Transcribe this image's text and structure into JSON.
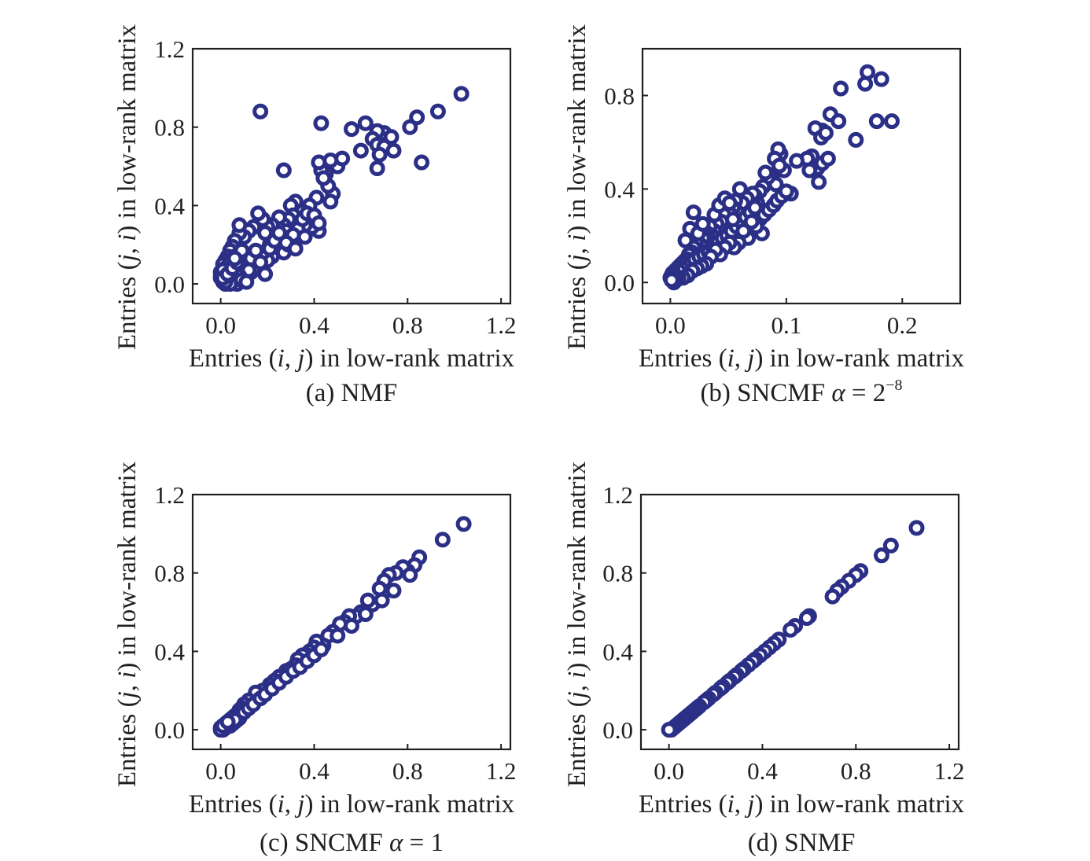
{
  "figure": {
    "marker_color": "#2b2f86",
    "axis_color": "#231f20"
  },
  "chart_data": [
    {
      "id": "a",
      "type": "scatter",
      "caption": "(a) NMF",
      "xlabel": {
        "prefix": "Entries (",
        "v1": "i",
        "sep": ", ",
        "v2": "j",
        "suffix": ") in low-rank matrix"
      },
      "ylabel": {
        "prefix": "Entries (",
        "v1": "j",
        "sep": ", ",
        "v2": "i",
        "suffix": ") in low-rank matrix"
      },
      "xlim": [
        -0.12,
        1.24
      ],
      "ylim": [
        -0.1,
        1.2
      ],
      "xticks": [
        {
          "v": 0,
          "label": "0.0"
        },
        {
          "v": 0.4,
          "label": "0.4"
        },
        {
          "v": 0.8,
          "label": "0.8"
        },
        {
          "v": 1.2,
          "label": "1.2"
        }
      ],
      "yticks": [
        {
          "v": 0,
          "label": "0.0"
        },
        {
          "v": 0.4,
          "label": "0.4"
        },
        {
          "v": 0.8,
          "label": "0.8"
        },
        {
          "v": 1.2,
          "label": "1.2"
        }
      ],
      "x": [
        1.03,
        0.93,
        0.81,
        0.84,
        0.7,
        0.67,
        0.65,
        0.62,
        0.6,
        0.67,
        0.7,
        0.68,
        0.73,
        0.74,
        0.67,
        0.86,
        0.56,
        0.43,
        0.17,
        0.27,
        0.5,
        0.52,
        0.47,
        0.45,
        0.43,
        0.42,
        0.48,
        0.46,
        0.44,
        0.47,
        0.41,
        0.38,
        0.35,
        0.32,
        0.3,
        0.42,
        0.39,
        0.36,
        0.33,
        0.31,
        0.29,
        0.27,
        0.25,
        0.22,
        0.2,
        0.18,
        0.16,
        0.14,
        0.12,
        0.1,
        0.08,
        0.06,
        0.05,
        0.04,
        0.03,
        0.02,
        0.01,
        0.0,
        0.0,
        0.01,
        0.02,
        0.03,
        0.05,
        0.07,
        0.09,
        0.11,
        0.13,
        0.15,
        0.17,
        0.19,
        0.21,
        0.23,
        0.26,
        0.28,
        0.3,
        0.33,
        0.35,
        0.37,
        0.4,
        0.42,
        0.24,
        0.22,
        0.2,
        0.18,
        0.16,
        0.14,
        0.12,
        0.1,
        0.08,
        0.06,
        0.04,
        0.02,
        0.0,
        0.01,
        0.03,
        0.05,
        0.07,
        0.09,
        0.11,
        0.13,
        0.15,
        0.17,
        0.19,
        0.21,
        0.23,
        0.25,
        0.27,
        0.29,
        0.31,
        0.19,
        0.12,
        0.08,
        0.06,
        0.04,
        0.02,
        0.01,
        0.03,
        0.05,
        0.07,
        0.09,
        0.11,
        0.28,
        0.32,
        0.36,
        0.09,
        0.08,
        0.06
      ],
      "y": [
        0.97,
        0.88,
        0.8,
        0.85,
        0.77,
        0.78,
        0.74,
        0.82,
        0.68,
        0.71,
        0.7,
        0.66,
        0.75,
        0.68,
        0.59,
        0.62,
        0.79,
        0.82,
        0.88,
        0.58,
        0.6,
        0.64,
        0.63,
        0.56,
        0.58,
        0.62,
        0.46,
        0.5,
        0.54,
        0.42,
        0.44,
        0.4,
        0.37,
        0.42,
        0.4,
        0.27,
        0.29,
        0.3,
        0.32,
        0.35,
        0.33,
        0.3,
        0.34,
        0.3,
        0.29,
        0.33,
        0.36,
        0.29,
        0.27,
        0.24,
        0.26,
        0.22,
        0.19,
        0.17,
        0.14,
        0.12,
        0.1,
        0.06,
        0.03,
        0.01,
        0.0,
        0.02,
        0.01,
        0.0,
        0.03,
        0.05,
        0.06,
        0.09,
        0.12,
        0.15,
        0.2,
        0.22,
        0.25,
        0.27,
        0.24,
        0.28,
        0.33,
        0.36,
        0.35,
        0.31,
        0.19,
        0.14,
        0.12,
        0.16,
        0.1,
        0.08,
        0.15,
        0.12,
        0.09,
        0.14,
        0.11,
        0.08,
        0.04,
        0.07,
        0.05,
        0.02,
        0.06,
        0.03,
        0.09,
        0.13,
        0.17,
        0.11,
        0.05,
        0.18,
        0.22,
        0.26,
        0.16,
        0.2,
        0.25,
        0.26,
        0.07,
        0.04,
        0.02,
        0.0,
        0.01,
        0.03,
        0.05,
        0.08,
        0.11,
        0.02,
        0.01,
        0.21,
        0.18,
        0.24,
        0.17,
        0.3,
        0.13
      ]
    },
    {
      "id": "b",
      "type": "scatter",
      "caption_parts": {
        "text": "(b) SNCMF ",
        "alpha": "α",
        "eq": " = 2",
        "sup": "−8"
      },
      "xlabel": {
        "prefix": "Entries (",
        "v1": "i",
        "sep": ", ",
        "v2": "j",
        "suffix": ") in low-rank matrix"
      },
      "ylabel": {
        "prefix": "Entries (",
        "v1": "j",
        "sep": ", ",
        "v2": "i",
        "suffix": ") in low-rank matrix"
      },
      "xlim": [
        -0.024,
        0.25
      ],
      "ylim": [
        -0.09,
        1.0
      ],
      "xticks": [
        {
          "v": 0,
          "label": "0.0"
        },
        {
          "v": 0.1,
          "label": "0.1"
        },
        {
          "v": 0.2,
          "label": "0.2"
        }
      ],
      "yticks": [
        {
          "v": 0,
          "label": "0.0"
        },
        {
          "v": 0.4,
          "label": "0.4"
        },
        {
          "v": 0.8,
          "label": "0.8"
        }
      ],
      "x": [
        0.17,
        0.168,
        0.182,
        0.147,
        0.178,
        0.191,
        0.138,
        0.131,
        0.125,
        0.13,
        0.134,
        0.145,
        0.122,
        0.127,
        0.118,
        0.131,
        0.128,
        0.136,
        0.16,
        0.12,
        0.109,
        0.104,
        0.098,
        0.095,
        0.093,
        0.09,
        0.088,
        0.086,
        0.094,
        0.091,
        0.084,
        0.082,
        0.08,
        0.077,
        0.075,
        0.073,
        0.071,
        0.069,
        0.066,
        0.064,
        0.062,
        0.06,
        0.058,
        0.056,
        0.054,
        0.052,
        0.05,
        0.048,
        0.046,
        0.044,
        0.042,
        0.04,
        0.038,
        0.036,
        0.034,
        0.032,
        0.03,
        0.028,
        0.026,
        0.024,
        0.022,
        0.02,
        0.018,
        0.016,
        0.014,
        0.012,
        0.01,
        0.008,
        0.006,
        0.004,
        0.003,
        0.002,
        0.001,
        0.0,
        0.002,
        0.004,
        0.006,
        0.009,
        0.012,
        0.015,
        0.018,
        0.021,
        0.025,
        0.029,
        0.033,
        0.037,
        0.041,
        0.045,
        0.049,
        0.053,
        0.057,
        0.061,
        0.065,
        0.069,
        0.073,
        0.077,
        0.081,
        0.085,
        0.089,
        0.092,
        0.096,
        0.1,
        0.079,
        0.074,
        0.07,
        0.067,
        0.063,
        0.059,
        0.055,
        0.051,
        0.047,
        0.043,
        0.039,
        0.035,
        0.031,
        0.027,
        0.023,
        0.019,
        0.015,
        0.011,
        0.007,
        0.005,
        0.003,
        0.001,
        0.013,
        0.017,
        0.02,
        0.024,
        0.028,
        0.038,
        0.042,
        0.047,
        0.051,
        0.054
      ],
      "y": [
        0.9,
        0.85,
        0.87,
        0.83,
        0.69,
        0.69,
        0.72,
        0.65,
        0.66,
        0.62,
        0.64,
        0.69,
        0.54,
        0.49,
        0.53,
        0.51,
        0.43,
        0.53,
        0.61,
        0.48,
        0.52,
        0.38,
        0.48,
        0.55,
        0.57,
        0.53,
        0.44,
        0.46,
        0.5,
        0.42,
        0.45,
        0.47,
        0.41,
        0.39,
        0.34,
        0.37,
        0.38,
        0.33,
        0.36,
        0.32,
        0.34,
        0.4,
        0.3,
        0.35,
        0.32,
        0.29,
        0.27,
        0.26,
        0.29,
        0.26,
        0.23,
        0.25,
        0.22,
        0.2,
        0.24,
        0.21,
        0.2,
        0.19,
        0.16,
        0.14,
        0.17,
        0.15,
        0.13,
        0.12,
        0.1,
        0.09,
        0.08,
        0.07,
        0.06,
        0.05,
        0.04,
        0.04,
        0.03,
        0.02,
        0.01,
        0.02,
        0.03,
        0.05,
        0.06,
        0.08,
        0.09,
        0.1,
        0.11,
        0.12,
        0.13,
        0.15,
        0.17,
        0.19,
        0.2,
        0.22,
        0.24,
        0.26,
        0.28,
        0.3,
        0.32,
        0.27,
        0.29,
        0.31,
        0.33,
        0.35,
        0.37,
        0.39,
        0.21,
        0.24,
        0.26,
        0.19,
        0.22,
        0.17,
        0.15,
        0.17,
        0.15,
        0.12,
        0.14,
        0.11,
        0.08,
        0.07,
        0.06,
        0.05,
        0.03,
        0.02,
        0.02,
        0.01,
        0.0,
        0.01,
        0.18,
        0.23,
        0.3,
        0.21,
        0.25,
        0.29,
        0.33,
        0.36,
        0.34,
        0.27
      ]
    },
    {
      "id": "c",
      "type": "scatter",
      "caption_parts": {
        "text": "(c) SNCMF ",
        "alpha": "α",
        "eq": " = 1",
        "sup": ""
      },
      "xlabel": {
        "prefix": "Entries (",
        "v1": "i",
        "sep": ", ",
        "v2": "j",
        "suffix": ") in low-rank matrix"
      },
      "ylabel": {
        "prefix": "Entries (",
        "v1": "j",
        "sep": ", ",
        "v2": "i",
        "suffix": ") in low-rank matrix"
      },
      "xlim": [
        -0.12,
        1.24
      ],
      "ylim": [
        -0.1,
        1.2
      ],
      "xticks": [
        {
          "v": 0,
          "label": "0.0"
        },
        {
          "v": 0.4,
          "label": "0.4"
        },
        {
          "v": 0.8,
          "label": "0.8"
        },
        {
          "v": 1.2,
          "label": "1.2"
        }
      ],
      "yticks": [
        {
          "v": 0,
          "label": "0.0"
        },
        {
          "v": 0.4,
          "label": "0.4"
        },
        {
          "v": 0.8,
          "label": "0.8"
        },
        {
          "v": 1.2,
          "label": "1.2"
        }
      ],
      "x": [
        1.04,
        0.95,
        0.85,
        0.83,
        0.8,
        0.78,
        0.75,
        0.72,
        0.7,
        0.68,
        0.65,
        0.63,
        0.6,
        0.58,
        0.55,
        0.53,
        0.51,
        0.48,
        0.46,
        0.44,
        0.41,
        0.4,
        0.38,
        0.37,
        0.35,
        0.33,
        0.32,
        0.3,
        0.28,
        0.27,
        0.25,
        0.23,
        0.21,
        0.2,
        0.18,
        0.16,
        0.15,
        0.13,
        0.12,
        0.1,
        0.09,
        0.08,
        0.07,
        0.06,
        0.05,
        0.04,
        0.03,
        0.02,
        0.01,
        0.0,
        0.01,
        0.02,
        0.03,
        0.04,
        0.05,
        0.06,
        0.07,
        0.08,
        0.1,
        0.12,
        0.14,
        0.17,
        0.19,
        0.22,
        0.25,
        0.28,
        0.31,
        0.34,
        0.37,
        0.4,
        0.43,
        0.5,
        0.56,
        0.62,
        0.69,
        0.74,
        0.81,
        0.02,
        0.04,
        0.06,
        0.0,
        0.01,
        0.03
      ],
      "y": [
        1.05,
        0.97,
        0.88,
        0.84,
        0.81,
        0.83,
        0.8,
        0.79,
        0.76,
        0.72,
        0.64,
        0.66,
        0.6,
        0.58,
        0.58,
        0.55,
        0.54,
        0.5,
        0.48,
        0.43,
        0.45,
        0.42,
        0.4,
        0.38,
        0.38,
        0.36,
        0.33,
        0.31,
        0.3,
        0.28,
        0.27,
        0.25,
        0.23,
        0.21,
        0.2,
        0.17,
        0.19,
        0.14,
        0.15,
        0.13,
        0.11,
        0.1,
        0.08,
        0.07,
        0.06,
        0.05,
        0.04,
        0.03,
        0.02,
        0.01,
        0.0,
        0.01,
        0.02,
        0.02,
        0.03,
        0.04,
        0.05,
        0.06,
        0.09,
        0.11,
        0.13,
        0.16,
        0.18,
        0.21,
        0.24,
        0.27,
        0.3,
        0.32,
        0.35,
        0.38,
        0.41,
        0.48,
        0.53,
        0.59,
        0.66,
        0.71,
        0.79,
        0.01,
        0.03,
        0.05,
        0.0,
        0.02,
        0.04
      ]
    },
    {
      "id": "d",
      "type": "scatter",
      "caption": "(d) SNMF",
      "xlabel": {
        "prefix": "Entries (",
        "v1": "i",
        "sep": ", ",
        "v2": "j",
        "suffix": ") in low-rank matrix"
      },
      "ylabel": {
        "prefix": "Entries (",
        "v1": "j",
        "sep": ", ",
        "v2": "i",
        "suffix": ") in low-rank matrix"
      },
      "xlim": [
        -0.12,
        1.24
      ],
      "ylim": [
        -0.1,
        1.2
      ],
      "xticks": [
        {
          "v": 0,
          "label": "0.0"
        },
        {
          "v": 0.4,
          "label": "0.4"
        },
        {
          "v": 0.8,
          "label": "0.8"
        },
        {
          "v": 1.2,
          "label": "1.2"
        }
      ],
      "yticks": [
        {
          "v": 0,
          "label": "0.0"
        },
        {
          "v": 0.4,
          "label": "0.4"
        },
        {
          "v": 0.8,
          "label": "0.8"
        },
        {
          "v": 1.2,
          "label": "1.2"
        }
      ],
      "x": [
        1.06,
        0.95,
        0.91,
        0.82,
        0.8,
        0.77,
        0.74,
        0.72,
        0.7,
        0.6,
        0.59,
        0.54,
        0.52,
        0.47,
        0.45,
        0.43,
        0.41,
        0.39,
        0.37,
        0.36,
        0.34,
        0.32,
        0.31,
        0.29,
        0.28,
        0.26,
        0.25,
        0.23,
        0.22,
        0.2,
        0.19,
        0.17,
        0.16,
        0.15,
        0.13,
        0.12,
        0.11,
        0.1,
        0.09,
        0.08,
        0.07,
        0.06,
        0.05,
        0.04,
        0.03,
        0.02,
        0.01,
        0.0
      ],
      "y": [
        1.03,
        0.94,
        0.89,
        0.81,
        0.79,
        0.76,
        0.73,
        0.71,
        0.68,
        0.58,
        0.57,
        0.53,
        0.51,
        0.46,
        0.44,
        0.42,
        0.4,
        0.38,
        0.36,
        0.35,
        0.33,
        0.31,
        0.3,
        0.28,
        0.27,
        0.25,
        0.24,
        0.22,
        0.21,
        0.19,
        0.18,
        0.16,
        0.15,
        0.14,
        0.12,
        0.11,
        0.1,
        0.09,
        0.08,
        0.07,
        0.06,
        0.05,
        0.04,
        0.03,
        0.02,
        0.01,
        0.0,
        0.0
      ]
    }
  ]
}
